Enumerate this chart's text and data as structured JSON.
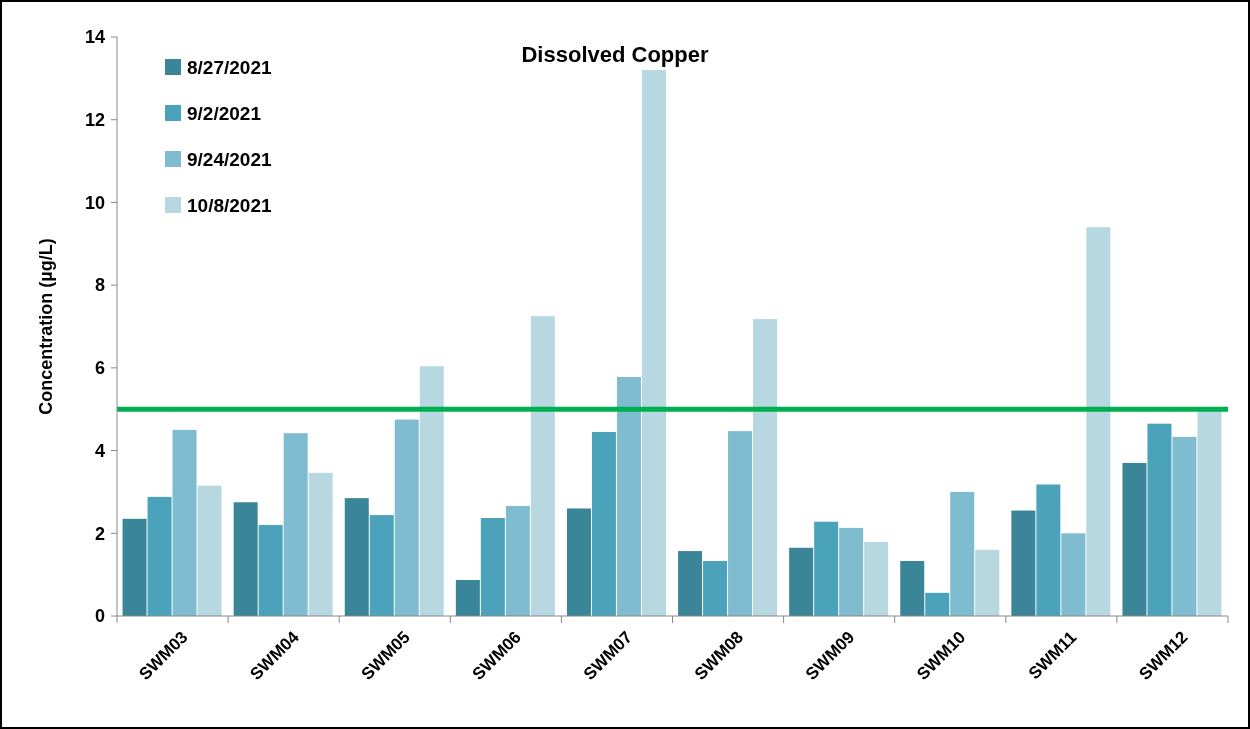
{
  "chart_data": {
    "type": "bar",
    "title": "Dissolved Copper",
    "ylabel": "Concentration (µg/L)",
    "categories": [
      "SWM03",
      "SWM04",
      "SWM05",
      "SWM06",
      "SWM07",
      "SWM08",
      "SWM09",
      "SWM10",
      "SWM11",
      "SWM12"
    ],
    "series": [
      {
        "name": "8/27/2021",
        "color": "#3a8598",
        "values": [
          2.35,
          2.75,
          2.85,
          0.87,
          2.6,
          1.57,
          1.65,
          1.33,
          2.55,
          3.7
        ]
      },
      {
        "name": "9/2/2021",
        "color": "#4aa3ba",
        "values": [
          2.88,
          2.2,
          2.44,
          2.37,
          4.45,
          1.33,
          2.28,
          0.56,
          3.18,
          4.65
        ]
      },
      {
        "name": "9/24/2021",
        "color": "#80bcd0",
        "values": [
          4.5,
          4.42,
          4.75,
          2.66,
          5.78,
          4.47,
          2.13,
          3.0,
          2.0,
          4.33
        ]
      },
      {
        "name": "10/8/2021",
        "color": "#b7d7e1",
        "values": [
          3.15,
          3.46,
          6.04,
          7.25,
          13.2,
          7.18,
          1.79,
          1.6,
          9.4,
          5.05
        ]
      }
    ],
    "ylim": [
      0,
      14
    ],
    "yticks": [
      0,
      2,
      4,
      6,
      8,
      10,
      12,
      14
    ],
    "grid": false,
    "legend": "top left",
    "ref_lines": [
      {
        "axis": "y",
        "value": 5,
        "color": "#00b050"
      }
    ]
  }
}
